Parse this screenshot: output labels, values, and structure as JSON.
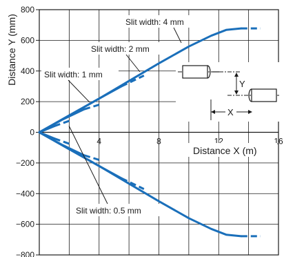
{
  "chart_data": {
    "type": "line",
    "xlabel": "Distance X (m)",
    "ylabel": "Distance Y (mm)",
    "xlim": [
      0,
      16
    ],
    "ylim": [
      -800,
      800
    ],
    "x_ticks": [
      4,
      8,
      12,
      16
    ],
    "x_tick_labels": [
      "4",
      "8",
      "12",
      "16"
    ],
    "y_ticks": [
      800,
      600,
      400,
      200,
      0,
      -200,
      -400,
      -600,
      -800
    ],
    "y_tick_labels": [
      "800",
      "600",
      "400",
      "200",
      "0",
      "−200",
      "−400",
      "−600",
      "−800"
    ],
    "grid": true,
    "line_color": "#1a6fba",
    "series": [
      {
        "name": "Slit width: 4 mm",
        "curves": [
          {
            "solid": [
              [
                0,
                0
              ],
              [
                2,
                110
              ],
              [
                4,
                220
              ],
              [
                6,
                335
              ],
              [
                8,
                450
              ],
              [
                10,
                560
              ],
              [
                11.5,
                630
              ],
              [
                12.5,
                668
              ],
              [
                13.5,
                678
              ]
            ],
            "dashed": [
              [
                13.5,
                678
              ],
              [
                14.8,
                678
              ]
            ]
          },
          {
            "solid": [
              [
                0,
                0
              ],
              [
                2,
                -110
              ],
              [
                4,
                -220
              ],
              [
                6,
                -335
              ],
              [
                8,
                -450
              ],
              [
                10,
                -560
              ],
              [
                11.5,
                -630
              ],
              [
                12.5,
                -668
              ],
              [
                13.5,
                -678
              ]
            ],
            "dashed": [
              [
                13.5,
                -678
              ],
              [
                14.8,
                -678
              ]
            ]
          }
        ]
      },
      {
        "name": "Slit width: 2 mm",
        "curves": [
          {
            "solid": [
              [
                0,
                0
              ],
              [
                2,
                110
              ],
              [
                4,
                220
              ],
              [
                5.5,
                300
              ]
            ],
            "dashed": [
              [
                5.5,
                300
              ],
              [
                7,
                370
              ]
            ]
          },
          {
            "solid": [
              [
                0,
                0
              ],
              [
                2,
                -110
              ],
              [
                4,
                -220
              ],
              [
                5.5,
                -300
              ]
            ],
            "dashed": [
              [
                5.5,
                -300
              ],
              [
                7,
                -370
              ]
            ]
          }
        ]
      },
      {
        "name": "Slit width: 1 mm",
        "curves": [
          {
            "solid": [
              [
                0,
                0
              ],
              [
                1.5,
                80
              ],
              [
                3,
                150
              ]
            ],
            "dashed": [
              [
                3,
                150
              ],
              [
                4,
                180
              ]
            ]
          },
          {
            "solid": [
              [
                0,
                0
              ],
              [
                1.5,
                -80
              ],
              [
                3,
                -150
              ]
            ],
            "dashed": [
              [
                3,
                -150
              ],
              [
                4,
                -180
              ]
            ]
          }
        ]
      },
      {
        "name": "Slit width: 0.5 mm",
        "curves": [
          {
            "solid": [
              [
                0,
                0
              ],
              [
                1,
                40
              ]
            ],
            "dashed": [
              [
                1,
                40
              ],
              [
                2,
                75
              ]
            ]
          },
          {
            "solid": [
              [
                0,
                0
              ],
              [
                1,
                -40
              ]
            ],
            "dashed": [
              [
                1,
                -40
              ],
              [
                2,
                -75
              ]
            ]
          }
        ]
      }
    ],
    "annotations": [
      {
        "text": "Slit width: 4 mm"
      },
      {
        "text": "Slit width: 2 mm"
      },
      {
        "text": "Slit width: 1 mm"
      },
      {
        "text": "Slit width: 0.5 mm"
      }
    ],
    "inset": {
      "x_label": "X",
      "y_label": "Y"
    }
  }
}
